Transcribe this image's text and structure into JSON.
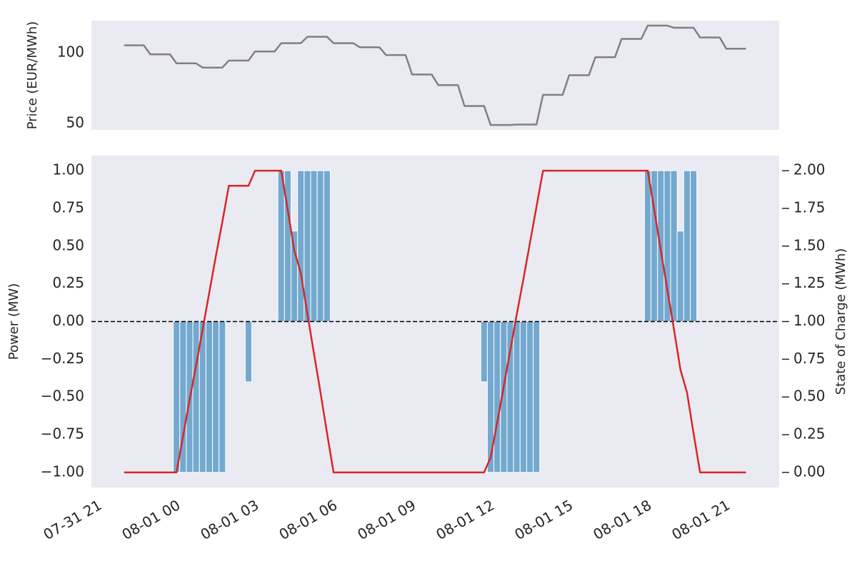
{
  "chart_data": [
    {
      "type": "line",
      "y_label": "Price (EUR/MWh)",
      "xlim": [
        20.75,
        47.02
      ],
      "ylim": [
        45.5,
        122.8
      ],
      "yticks": [
        50,
        100
      ],
      "grid": false,
      "x": [
        22,
        22.25,
        22.5,
        22.75,
        23,
        23.25,
        23.5,
        23.75,
        24,
        24.25,
        24.5,
        24.75,
        25,
        25.25,
        25.5,
        25.75,
        26,
        26.25,
        26.5,
        26.75,
        27,
        27.25,
        27.5,
        27.75,
        28,
        28.25,
        28.5,
        28.75,
        29,
        29.25,
        29.5,
        29.75,
        30,
        30.25,
        30.5,
        30.75,
        31,
        31.25,
        31.5,
        31.75,
        32,
        32.25,
        32.5,
        32.75,
        33,
        33.25,
        33.5,
        33.75,
        34,
        34.25,
        34.5,
        34.75,
        35,
        35.25,
        35.5,
        35.75,
        36,
        36.25,
        36.5,
        36.75,
        37,
        37.25,
        37.5,
        37.75,
        38,
        38.25,
        38.5,
        38.75,
        39,
        39.25,
        39.5,
        39.75,
        40,
        40.25,
        40.5,
        40.75,
        41,
        41.25,
        41.5,
        41.75,
        42,
        42.25,
        42.5,
        42.75,
        43,
        43.25,
        43.5,
        43.75,
        44,
        44.25,
        44.5,
        44.75,
        45,
        45.25,
        45.5,
        45.75
      ],
      "series": [
        {
          "type": "line",
          "color": "#808080",
          "values": [
            105.4,
            105.4,
            105.4,
            105.4,
            99,
            99,
            99,
            99,
            92.6,
            92.6,
            92.6,
            92.6,
            89.6,
            89.6,
            89.6,
            89.6,
            94.6,
            94.6,
            94.6,
            94.6,
            101,
            101,
            101,
            101,
            106.9,
            106.9,
            106.9,
            106.9,
            111.4,
            111.4,
            111.4,
            111.4,
            106.9,
            106.9,
            106.9,
            106.9,
            104,
            104,
            104,
            104,
            98.5,
            98.5,
            98.5,
            98.5,
            84.7,
            84.7,
            84.7,
            84.7,
            77.2,
            77.2,
            77.2,
            77.2,
            62.4,
            62.4,
            62.4,
            62.4,
            49,
            49,
            49,
            49,
            49.3,
            49.3,
            49.3,
            49.3,
            70.3,
            70.3,
            70.3,
            70.3,
            84.2,
            84.2,
            84.2,
            84.2,
            97,
            97,
            97,
            97,
            109.9,
            109.9,
            109.9,
            109.9,
            119.3,
            119.3,
            119.3,
            119.3,
            117.8,
            117.8,
            117.8,
            117.8,
            110.9,
            110.9,
            110.9,
            110.9,
            103,
            103,
            103,
            103
          ]
        }
      ]
    },
    {
      "type": "combo",
      "y_label": "Power (MW)",
      "y2_label": "State of Charge (MWh)",
      "xlim": [
        20.75,
        47.02
      ],
      "ylim": [
        -1.1,
        1.1
      ],
      "y2lim": [
        -0.1,
        2.1
      ],
      "grid": false,
      "hline": 0,
      "xticks": [
        {
          "value": 21,
          "label": "07-31 21"
        },
        {
          "value": 24,
          "label": "08-01 00"
        },
        {
          "value": 27,
          "label": "08-01 03"
        },
        {
          "value": 30,
          "label": "08-01 06"
        },
        {
          "value": 33,
          "label": "08-01 09"
        },
        {
          "value": 36,
          "label": "08-01 12"
        },
        {
          "value": 39,
          "label": "08-01 15"
        },
        {
          "value": 42,
          "label": "08-01 18"
        },
        {
          "value": 45,
          "label": "08-01 21"
        }
      ],
      "yticks": [
        {
          "value": -1,
          "label": "−1.00"
        },
        {
          "value": -0.75,
          "label": "−0.75"
        },
        {
          "value": -0.5,
          "label": "−0.50"
        },
        {
          "value": -0.25,
          "label": "−0.25"
        },
        {
          "value": 0,
          "label": "0.00"
        },
        {
          "value": 0.25,
          "label": "0.25"
        },
        {
          "value": 0.5,
          "label": "0.50"
        },
        {
          "value": 0.75,
          "label": "0.75"
        },
        {
          "value": 1,
          "label": "1.00"
        }
      ],
      "y2ticks": [
        {
          "value": 0,
          "label": "0.00"
        },
        {
          "value": 0.25,
          "label": "0.25"
        },
        {
          "value": 0.5,
          "label": "0.50"
        },
        {
          "value": 0.75,
          "label": "0.75"
        },
        {
          "value": 1,
          "label": "1.00"
        },
        {
          "value": 1.25,
          "label": "1.25"
        },
        {
          "value": 1.5,
          "label": "1.50"
        },
        {
          "value": 1.75,
          "label": "1.75"
        },
        {
          "value": 2,
          "label": "2.00"
        }
      ],
      "x": [
        22,
        22.25,
        22.5,
        22.75,
        23,
        23.25,
        23.5,
        23.75,
        24,
        24.25,
        24.5,
        24.75,
        25,
        25.25,
        25.5,
        25.75,
        26,
        26.25,
        26.5,
        26.75,
        27,
        27.25,
        27.5,
        27.75,
        28,
        28.25,
        28.5,
        28.75,
        29,
        29.25,
        29.5,
        29.75,
        30,
        30.25,
        30.5,
        30.75,
        31,
        31.25,
        31.5,
        31.75,
        32,
        32.25,
        32.5,
        32.75,
        33,
        33.25,
        33.5,
        33.75,
        34,
        34.25,
        34.5,
        34.75,
        35,
        35.25,
        35.5,
        35.75,
        36,
        36.25,
        36.5,
        36.75,
        37,
        37.25,
        37.5,
        37.75,
        38,
        38.25,
        38.5,
        38.75,
        39,
        39.25,
        39.5,
        39.75,
        40,
        40.25,
        40.5,
        40.75,
        41,
        41.25,
        41.5,
        41.75,
        42,
        42.25,
        42.5,
        42.75,
        43,
        43.25,
        43.5,
        43.75,
        44,
        44.25,
        44.5,
        44.75,
        45,
        45.25,
        45.5,
        45.75
      ],
      "series": [
        {
          "type": "bar",
          "color": "#74a9cf",
          "values": [
            0,
            0,
            0,
            0,
            0,
            0,
            0,
            0,
            -1,
            -1,
            -1,
            -1,
            -1,
            -1,
            -1,
            -1,
            0,
            0,
            0,
            -0.4,
            0,
            0,
            0,
            0,
            1,
            1,
            0.6,
            1,
            1,
            1,
            1,
            1,
            0,
            0,
            0,
            0,
            0,
            0,
            0,
            0,
            0,
            0,
            0,
            0,
            0,
            0,
            0,
            0,
            0,
            0,
            0,
            0,
            0,
            0,
            0,
            -0.4,
            -1,
            -1,
            -1,
            -1,
            -1,
            -1,
            -1,
            -1,
            0,
            0,
            0,
            0,
            0,
            0,
            0,
            0,
            0,
            0,
            0,
            0,
            0,
            0,
            0,
            0,
            1,
            1,
            1,
            1,
            1,
            0.6,
            1,
            1,
            0,
            0,
            0,
            0,
            0,
            0,
            0,
            0
          ]
        },
        {
          "type": "line",
          "axis": "y2",
          "color": "#d62728",
          "values": [
            0,
            0,
            0,
            0,
            0,
            0,
            0,
            0,
            0,
            0.24,
            0.48,
            0.71,
            0.95,
            1.19,
            1.43,
            1.66,
            1.9,
            1.9,
            1.9,
            1.9,
            2,
            2,
            2,
            2,
            2,
            1.74,
            1.47,
            1.32,
            1.05,
            0.79,
            0.53,
            0.26,
            0,
            0,
            0,
            0,
            0,
            0,
            0,
            0,
            0,
            0,
            0,
            0,
            0,
            0,
            0,
            0,
            0,
            0,
            0,
            0,
            0,
            0,
            0,
            0,
            0.1,
            0.33,
            0.57,
            0.81,
            1.05,
            1.28,
            1.52,
            1.76,
            2,
            2,
            2,
            2,
            2,
            2,
            2,
            2,
            2,
            2,
            2,
            2,
            2,
            2,
            2,
            2,
            2,
            1.74,
            1.47,
            1.21,
            0.95,
            0.68,
            0.53,
            0.26,
            0,
            0,
            0,
            0,
            0,
            0,
            0,
            0
          ]
        }
      ]
    }
  ]
}
